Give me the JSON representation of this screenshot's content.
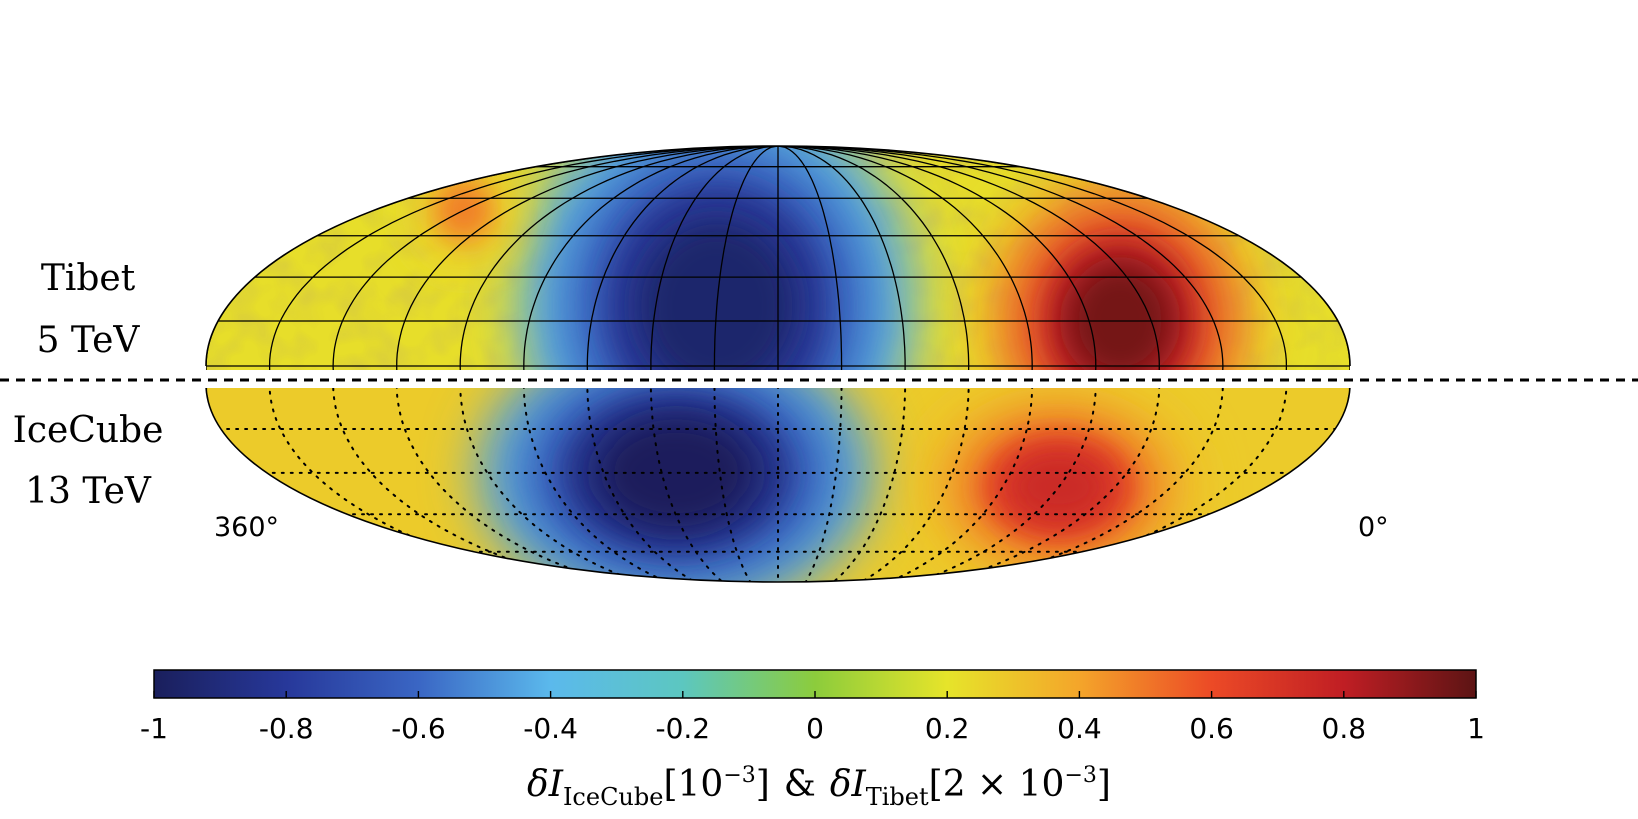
{
  "chart_data": {
    "type": "heatmap",
    "projection": "mollweide",
    "title": "",
    "panels": [
      {
        "name": "Tibet",
        "energy": "5 TeV",
        "features": [
          {
            "kind": "deficit",
            "label": "",
            "ra_deg": 200,
            "dec_deg": 20,
            "level": -0.95
          },
          {
            "kind": "excess",
            "label": "",
            "ra_deg": 70,
            "dec_deg": 15,
            "level": 0.95
          },
          {
            "kind": "excess",
            "label": "",
            "ra_deg": 320,
            "dec_deg": 55,
            "level": 0.5
          }
        ]
      },
      {
        "name": "IceCube",
        "energy": "13 TeV",
        "features": [
          {
            "kind": "deficit",
            "label": "",
            "ra_deg": 215,
            "dec_deg": -30,
            "level": -1.0
          },
          {
            "kind": "excess",
            "label": "",
            "ra_deg": 80,
            "dec_deg": -35,
            "level": 0.75
          }
        ]
      }
    ],
    "ra_labels": [
      "360°",
      "0°"
    ],
    "ra_range": [
      360,
      0
    ],
    "dec_range": [
      -90,
      90
    ],
    "grid": true,
    "colorbar": {
      "min": -1,
      "max": 1,
      "ticks": [
        "-1",
        "-0.8",
        "-0.6",
        "-0.4",
        "-0.2",
        "0",
        "0.2",
        "0.4",
        "0.6",
        "0.8",
        "1"
      ],
      "tick_values": [
        -1,
        -0.8,
        -0.6,
        -0.4,
        -0.2,
        0,
        0.2,
        0.4,
        0.6,
        0.8,
        1
      ],
      "colormap": [
        "#1a1f5c",
        "#27389a",
        "#3a66c4",
        "#5bb9ec",
        "#5cc7c0",
        "#8ccc3c",
        "#e6e42a",
        "#f4a52a",
        "#ec4a26",
        "#c01e24",
        "#5c1414"
      ]
    },
    "colorbar_label": {
      "prefix_icecube": "δI",
      "sub_icecube": "IceCube",
      "scale_icecube": "[10",
      "exp_icecube": "−3",
      "close_icecube": "]",
      "amp": "&",
      "prefix_tibet": "δI",
      "sub_tibet": "Tibet",
      "scale_tibet": "[2 × 10",
      "exp_tibet": "−3",
      "close_tibet": "]"
    }
  }
}
